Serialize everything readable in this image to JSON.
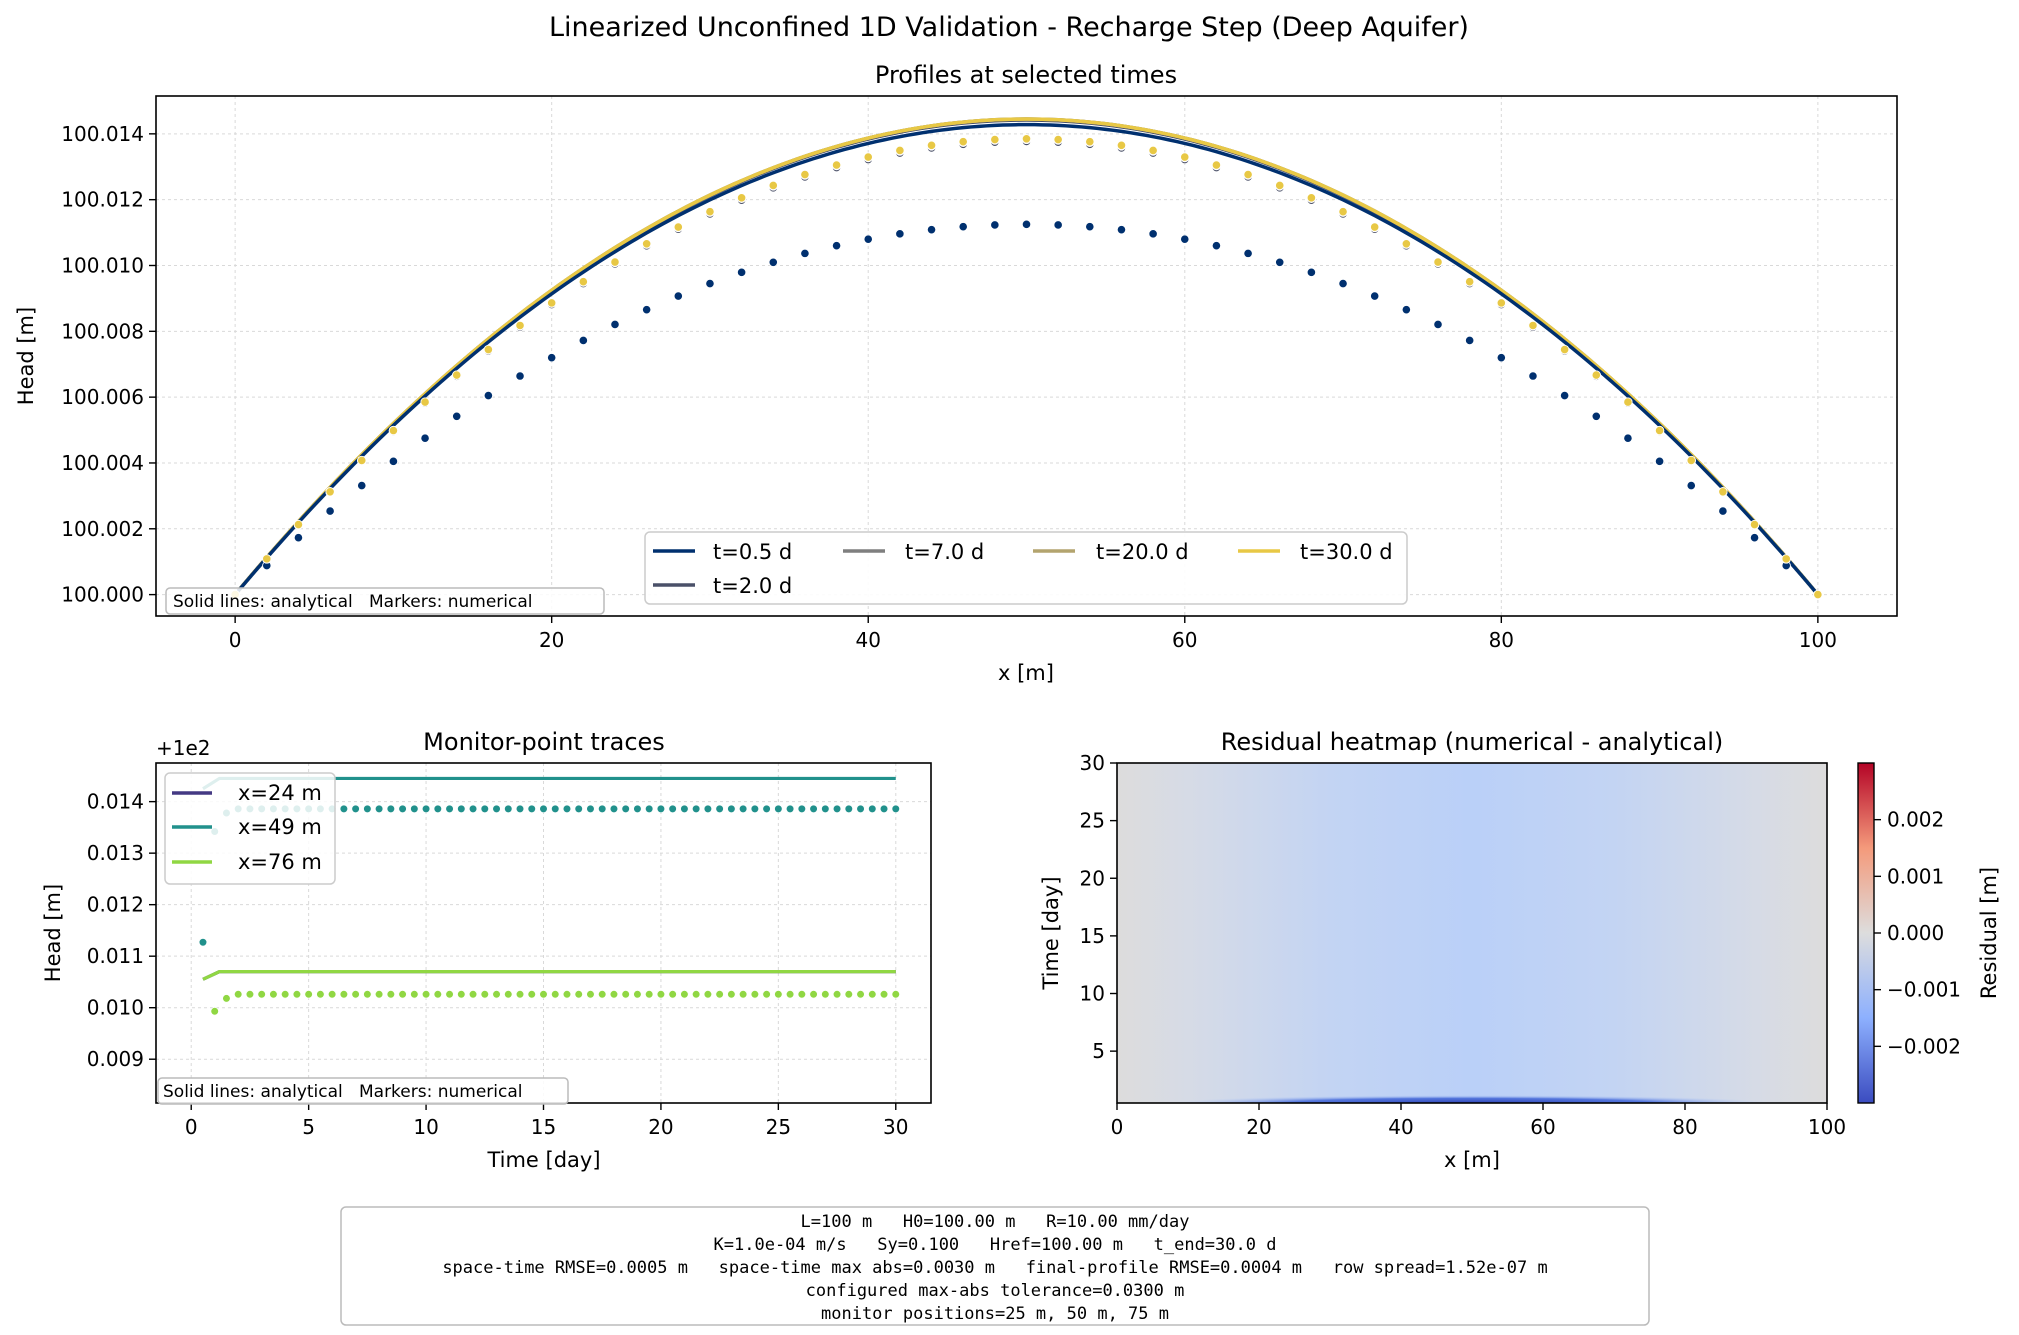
{
  "figure": {
    "suptitle": "Linearized Unconfined 1D Validation - Recharge Step (Deep Aquifer)"
  },
  "chart_data": [
    {
      "type": "line",
      "title": "Profiles at selected times",
      "xlabel": "x [m]",
      "ylabel": "Head [m]",
      "xlim": [
        -5,
        105
      ],
      "ylim": [
        99.99935,
        100.01515
      ],
      "xticks": [
        0,
        20,
        40,
        60,
        80,
        100
      ],
      "yticks": [
        100.0,
        100.002,
        100.004,
        100.006,
        100.008,
        100.01,
        100.012,
        100.014
      ],
      "ytick_labels": [
        "100.000",
        "100.002",
        "100.004",
        "100.006",
        "100.008",
        "100.010",
        "100.012",
        "100.014"
      ],
      "grid": true,
      "legend_position": "lower-center",
      "note": "Solid lines: analytical   Markers: numerical",
      "series": [
        {
          "name": "t=0.5 d",
          "color": "#00306f",
          "analytical_peak": 100.01428,
          "numerical_peak": 100.01125
        },
        {
          "name": "t=2.0 d",
          "color": "#4a5068",
          "analytical_peak": 100.01442,
          "numerical_peak": 100.01377
        },
        {
          "name": "t=7.0 d",
          "color": "#7f7f7f",
          "analytical_peak": 100.01445,
          "numerical_peak": 100.01383
        },
        {
          "name": "t=20.0 d",
          "color": "#b3a46e",
          "analytical_peak": 100.01445,
          "numerical_peak": 100.01385
        },
        {
          "name": "t=30.0 d",
          "color": "#e8c845",
          "analytical_peak": 100.01445,
          "numerical_peak": 100.01385
        }
      ],
      "profile_shape": "parabolic, h = 100 at x = 0 and x = 100, maximum at x = 50"
    },
    {
      "type": "line",
      "title": "Monitor-point traces",
      "xlabel": "Time [day]",
      "ylabel": "Head [m]",
      "offset_text": "+1e2",
      "xlim": [
        -1.5,
        31.5
      ],
      "ylim": [
        0.00815,
        0.01475
      ],
      "xticks": [
        0,
        5,
        10,
        15,
        20,
        25,
        30
      ],
      "yticks": [
        0.009,
        0.01,
        0.011,
        0.012,
        0.013,
        0.014
      ],
      "ytick_labels": [
        "0.009",
        "0.010",
        "0.011",
        "0.012",
        "0.013",
        "0.014"
      ],
      "grid": true,
      "legend_position": "upper-left",
      "note": "Solid lines: analytical   Markers: numerical",
      "series": [
        {
          "name": "x=24 m",
          "color": "#443983",
          "analytical": [
            [
              0.5,
              0.01055
            ],
            [
              1.2,
              0.0107
            ],
            [
              30,
              0.0107
            ]
          ],
          "numerical_steady": 0.01026,
          "numerical_first": [
            [
              1.0,
              0.00993
            ],
            [
              1.5,
              0.01018
            ]
          ]
        },
        {
          "name": "x=49 m",
          "color": "#21918c",
          "analytical": [
            [
              0.5,
              0.01425
            ],
            [
              1.2,
              0.01445
            ],
            [
              30,
              0.01445
            ]
          ],
          "numerical_steady": 0.01386,
          "numerical_first": [
            [
              0.5,
              0.01127
            ],
            [
              1.0,
              0.01342
            ],
            [
              1.5,
              0.01378
            ]
          ]
        },
        {
          "name": "x=76 m",
          "color": "#90d743",
          "analytical": [
            [
              0.5,
              0.01055
            ],
            [
              1.2,
              0.0107
            ],
            [
              30,
              0.0107
            ]
          ],
          "numerical_steady": 0.01026,
          "numerical_first": [
            [
              1.0,
              0.00993
            ],
            [
              1.5,
              0.01018
            ]
          ]
        }
      ],
      "numerical_time_step": 0.5
    },
    {
      "type": "heatmap",
      "title": "Residual heatmap (numerical - analytical)",
      "xlabel": "x [m]",
      "ylabel": "Time [day]",
      "xlim": [
        0,
        100
      ],
      "ylim": [
        0.5,
        30
      ],
      "xticks": [
        0,
        20,
        40,
        60,
        80,
        100
      ],
      "yticks": [
        5,
        10,
        15,
        20,
        25,
        30
      ],
      "colormap": "coolwarm",
      "colorbar": {
        "label": "Residual [m]",
        "range": [
          -0.003,
          0.003
        ],
        "ticks": [
          -0.002,
          -0.001,
          0.0,
          0.001,
          0.002
        ],
        "tick_labels": [
          "−0.002",
          "−0.001",
          "0.000",
          "0.001",
          "0.002"
        ]
      },
      "residual_model": "near-zero at x=0 and x=100, about -0.0006 at x=50 for t > 1 day, about -0.003 at x=50 for earliest time step"
    }
  ],
  "summary_box": {
    "lines": [
      "L=100 m   H0=100.00 m   R=10.00 mm/day",
      "K=1.0e-04 m/s   Sy=0.100   Href=100.00 m   t_end=30.0 d",
      "space-time RMSE=0.0005 m   space-time max abs=0.0030 m   final-profile RMSE=0.0004 m   row spread=1.52e-07 m",
      "configured max-abs tolerance=0.0300 m",
      "monitor positions=25 m, 50 m, 75 m"
    ]
  }
}
